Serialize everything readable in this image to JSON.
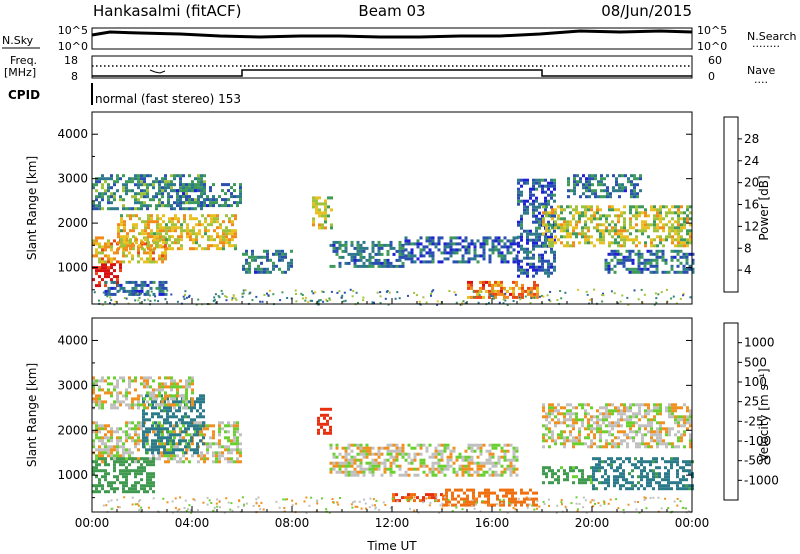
{
  "header": {
    "station": "Hankasalmi (fitACF)",
    "beam": "Beam 03",
    "date": "08/Jun/2015"
  },
  "panels": {
    "nsky": {
      "left_label": "N.Sky",
      "right_label": "N.Search",
      "left_ticks": [
        "10^5",
        "10^0"
      ],
      "right_ticks": [
        "10^5",
        "10^0"
      ],
      "right_dots": "........"
    },
    "freq": {
      "left_label_1": "Freq.",
      "left_label_2": "[MHz]",
      "left_ticks": [
        "18",
        "8"
      ],
      "right_label": "Nave",
      "right_ticks": [
        "60",
        "0"
      ],
      "right_dots": "...."
    },
    "cpid": {
      "label": "CPID",
      "mode": "normal (fast stereo) 153"
    }
  },
  "chart_data": [
    {
      "type": "heatmap",
      "name": "power",
      "ylabel": "Slant Range [km]",
      "xlabel": "",
      "x_ticks": [
        "00:00",
        "04:00",
        "08:00",
        "12:00",
        "16:00",
        "20:00",
        "00:00"
      ],
      "xlim_hours": [
        0,
        24
      ],
      "y_ticks": [
        1000,
        2000,
        3000,
        4000
      ],
      "ylim": [
        180,
        4500
      ],
      "colorbar": {
        "label": "Power [dB]",
        "ticks": [
          "28",
          "24",
          "20",
          "16",
          "12",
          "8",
          "4"
        ],
        "range": [
          0,
          30
        ],
        "colors": [
          "#1f1fd6",
          "#2a4fb0",
          "#2f7a8a",
          "#3e9a5a",
          "#9fc23a",
          "#e8c020",
          "#f08a1a",
          "#e84a15",
          "#d81010"
        ]
      },
      "bands": [
        {
          "t0": 0.0,
          "t1": 1.2,
          "r0": 600,
          "r1": 1100,
          "power": 28
        },
        {
          "t0": 0.0,
          "t1": 3.0,
          "r0": 1100,
          "r1": 1700,
          "power": 20
        },
        {
          "t0": 1.0,
          "t1": 5.8,
          "r0": 1400,
          "r1": 2200,
          "power": 18
        },
        {
          "t0": 0.0,
          "t1": 4.5,
          "r0": 2300,
          "r1": 3100,
          "power": 10
        },
        {
          "t0": 0.5,
          "t1": 3.0,
          "r0": 400,
          "r1": 700,
          "power": 6
        },
        {
          "t0": 3.0,
          "t1": 6.0,
          "r0": 2400,
          "r1": 2900,
          "power": 8
        },
        {
          "t0": 6.0,
          "t1": 8.0,
          "r0": 900,
          "r1": 1400,
          "power": 8
        },
        {
          "t0": 8.8,
          "t1": 9.6,
          "r0": 1900,
          "r1": 2600,
          "power": 16
        },
        {
          "t0": 9.5,
          "t1": 12.5,
          "r0": 1000,
          "r1": 1600,
          "power": 8
        },
        {
          "t0": 12.5,
          "t1": 17.0,
          "r0": 1100,
          "r1": 1700,
          "power": 6
        },
        {
          "t0": 15.0,
          "t1": 17.8,
          "r0": 300,
          "r1": 700,
          "power": 22
        },
        {
          "t0": 17.0,
          "t1": 18.5,
          "r0": 800,
          "r1": 3000,
          "power": 6
        },
        {
          "t0": 18.0,
          "t1": 24.0,
          "r0": 1500,
          "r1": 2400,
          "power": 16
        },
        {
          "t0": 19.0,
          "t1": 22.0,
          "r0": 2600,
          "r1": 3100,
          "power": 8
        },
        {
          "t0": 20.5,
          "t1": 24.0,
          "r0": 900,
          "r1": 1400,
          "power": 8
        }
      ]
    },
    {
      "type": "heatmap",
      "name": "velocity",
      "ylabel": "Slant Range [km]",
      "xlabel": "Time UT",
      "x_ticks": [
        "00:00",
        "04:00",
        "08:00",
        "12:00",
        "16:00",
        "20:00",
        "00:00"
      ],
      "xlim_hours": [
        0,
        24
      ],
      "y_ticks": [
        1000,
        2000,
        3000,
        4000
      ],
      "ylim": [
        180,
        4500
      ],
      "colorbar": {
        "label": "Velocity [m s⁻¹]",
        "ticks": [
          "1000",
          "500",
          "100",
          "25",
          "-25",
          "-100",
          "-500",
          "-1000"
        ],
        "colors": [
          "#1f2fc0",
          "#2a7a8a",
          "#3f9a50",
          "#6ad030",
          "#c0c0c0",
          "#f09020",
          "#f07010",
          "#e83010",
          "#d01010"
        ]
      },
      "bands": [
        {
          "t0": 0.0,
          "t1": 6.0,
          "r0": 1300,
          "r1": 2200,
          "velocity": 0
        },
        {
          "t0": 0.0,
          "t1": 2.5,
          "r0": 600,
          "r1": 1400,
          "velocity": 150
        },
        {
          "t0": 2.0,
          "t1": 4.5,
          "r0": 1500,
          "r1": 2800,
          "velocity": 300
        },
        {
          "t0": 0.0,
          "t1": 4.0,
          "r0": 2500,
          "r1": 3200,
          "velocity": 0
        },
        {
          "t0": 9.0,
          "t1": 9.5,
          "r0": 1900,
          "r1": 2500,
          "velocity": -500
        },
        {
          "t0": 9.5,
          "t1": 17.0,
          "r0": 1000,
          "r1": 1700,
          "velocity": 0
        },
        {
          "t0": 12.0,
          "t1": 14.0,
          "r0": 400,
          "r1": 600,
          "velocity": -300
        },
        {
          "t0": 14.0,
          "t1": 17.8,
          "r0": 300,
          "r1": 700,
          "velocity": -200
        },
        {
          "t0": 18.0,
          "t1": 24.0,
          "r0": 1600,
          "r1": 2600,
          "velocity": 0
        },
        {
          "t0": 18.0,
          "t1": 20.0,
          "r0": 800,
          "r1": 1200,
          "velocity": 100
        },
        {
          "t0": 20.0,
          "t1": 24.0,
          "r0": 700,
          "r1": 1400,
          "velocity": 300
        }
      ]
    }
  ]
}
